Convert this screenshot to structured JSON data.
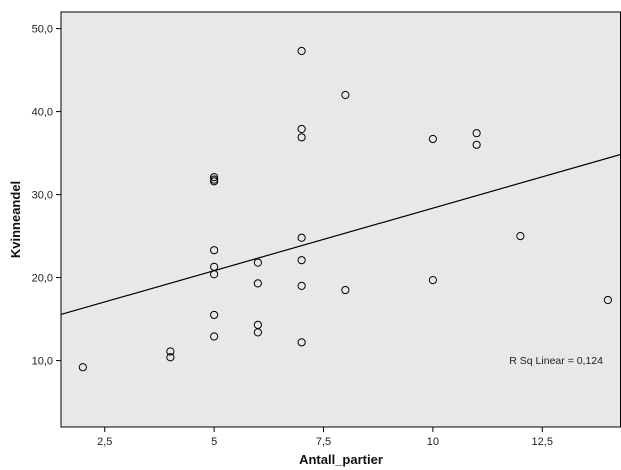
{
  "chart_data": {
    "type": "scatter",
    "title": "",
    "xlabel": "Antall_partier",
    "ylabel": "Kvinneandel",
    "xlim": [
      1.5,
      14.3
    ],
    "ylim": [
      2.0,
      52.0
    ],
    "x_ticks": [
      2.5,
      5,
      7.5,
      10,
      12.5
    ],
    "x_tick_labels": [
      "2,5",
      "5",
      "7,5",
      "10",
      "12,5"
    ],
    "y_ticks": [
      10,
      20,
      30,
      40,
      50
    ],
    "y_tick_labels": [
      "10,0",
      "20,0",
      "30,0",
      "40,0",
      "50,0"
    ],
    "grid": false,
    "plot_background": "#e8e8e8",
    "marker_color": "#000000",
    "points": [
      {
        "x": 2,
        "y": 9.2
      },
      {
        "x": 4,
        "y": 10.4
      },
      {
        "x": 4,
        "y": 11.1
      },
      {
        "x": 5,
        "y": 12.9
      },
      {
        "x": 5,
        "y": 15.5
      },
      {
        "x": 5,
        "y": 20.4
      },
      {
        "x": 5,
        "y": 21.3
      },
      {
        "x": 5,
        "y": 23.3
      },
      {
        "x": 5,
        "y": 31.6
      },
      {
        "x": 5,
        "y": 31.8
      },
      {
        "x": 5,
        "y": 32.1
      },
      {
        "x": 6,
        "y": 13.4
      },
      {
        "x": 6,
        "y": 14.3
      },
      {
        "x": 6,
        "y": 19.3
      },
      {
        "x": 6,
        "y": 21.8
      },
      {
        "x": 7,
        "y": 12.2
      },
      {
        "x": 7,
        "y": 19.0
      },
      {
        "x": 7,
        "y": 22.1
      },
      {
        "x": 7,
        "y": 24.8
      },
      {
        "x": 7,
        "y": 36.9
      },
      {
        "x": 7,
        "y": 37.9
      },
      {
        "x": 7,
        "y": 47.3
      },
      {
        "x": 8,
        "y": 18.5
      },
      {
        "x": 8,
        "y": 42.0
      },
      {
        "x": 10,
        "y": 19.7
      },
      {
        "x": 10,
        "y": 36.7
      },
      {
        "x": 11,
        "y": 36.0
      },
      {
        "x": 11,
        "y": 37.4
      },
      {
        "x": 12,
        "y": 25.0
      },
      {
        "x": 14,
        "y": 17.3
      }
    ],
    "fit_line": {
      "intercept": 13.3,
      "slope": 1.507
    },
    "annotation": "R Sq Linear = 0,124"
  }
}
